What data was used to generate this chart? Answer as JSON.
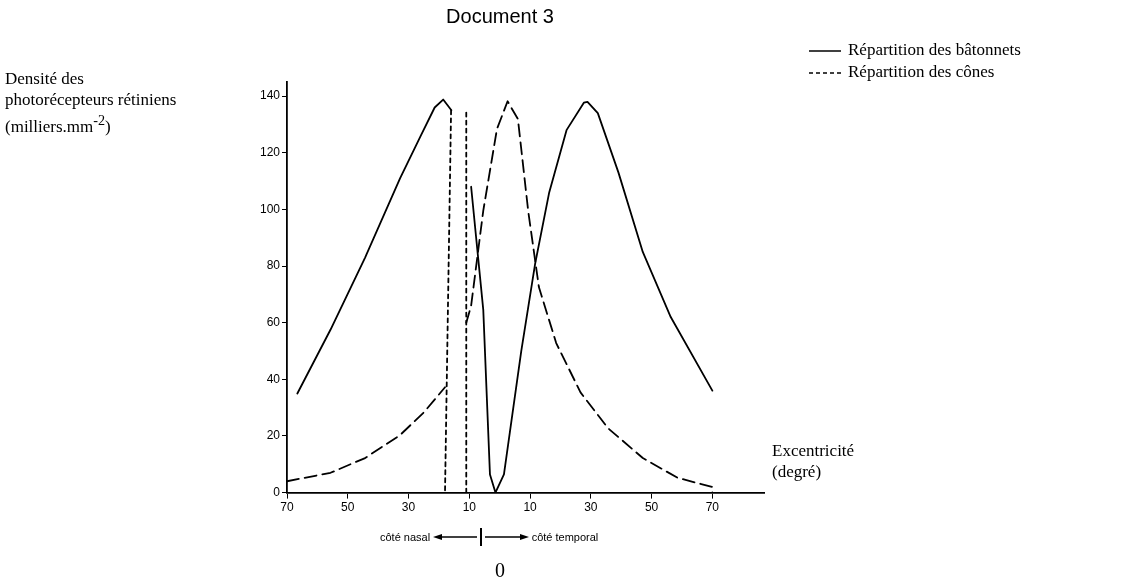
{
  "chart_data": {
    "type": "line",
    "title": "Document 3",
    "ylabel": "Densité des photorécepteurs rétiniens (milliers.mm$^{-2}$)",
    "xlabel": "Excentricité (degré)",
    "xlim": [
      -70,
      87
    ],
    "ylim": [
      0,
      145
    ],
    "xticks": [
      {
        "value": -70,
        "label": "70"
      },
      {
        "value": -50,
        "label": "50"
      },
      {
        "value": -30,
        "label": "30"
      },
      {
        "value": -10,
        "label": "10"
      },
      10,
      30,
      50,
      70
    ],
    "yticks": [
      0,
      20,
      40,
      60,
      80,
      100,
      120,
      140
    ],
    "grid": false,
    "legend": "top right",
    "marker": "none",
    "annotations": [
      "côté nasal",
      "côté temporal",
      "0"
    ],
    "series": [
      {
        "name": "Répartition des bâtonnets",
        "color": "#000000",
        "line_style": "solid",
        "x": [
          -66.6,
          -55.7,
          -44.3,
          -32.8,
          -26,
          -21.4,
          -18.6,
          -15.9,
          -13,
          -9.4,
          -5.4,
          -3.2,
          -1.4,
          1.4,
          7.1,
          11.7,
          16.3,
          22,
          27.7,
          28.9,
          32.3,
          39.1,
          47.1,
          56.3,
          70
        ],
        "values": [
          35,
          57.5,
          83,
          111,
          126,
          136,
          138.8,
          135,
          null,
          108,
          64.5,
          6.4,
          0,
          6.4,
          50,
          81,
          106,
          128,
          137.7,
          138,
          134,
          113,
          85,
          62,
          36
        ]
      },
      {
        "name": "Répartition des cônes",
        "color": "#000000",
        "line_style": "dashed",
        "x": [
          -70,
          -55.7,
          -44.3,
          -32.8,
          -24.9,
          -18,
          -14,
          -11,
          -9.4,
          -5.4,
          -0.9,
          2.6,
          6,
          9.4,
          12.9,
          18.6,
          26.6,
          35.7,
          47.1,
          58.6,
          70,
          70
        ],
        "values": [
          4,
          7,
          12.2,
          20.3,
          28.4,
          37.2,
          null,
          60,
          66,
          99.6,
          128.4,
          138.2,
          131.9,
          99.3,
          72.6,
          52.8,
          35.4,
          22.7,
          12.2,
          5.2,
          2,
          0
        ]
      },
      {
        "color": "#000000",
        "line_style": "dotted",
        "x": [
          -16,
          -18,
          -14,
          -11,
          -11
        ],
        "values": [
          135,
          0,
          null,
          0,
          135
        ]
      }
    ]
  }
}
